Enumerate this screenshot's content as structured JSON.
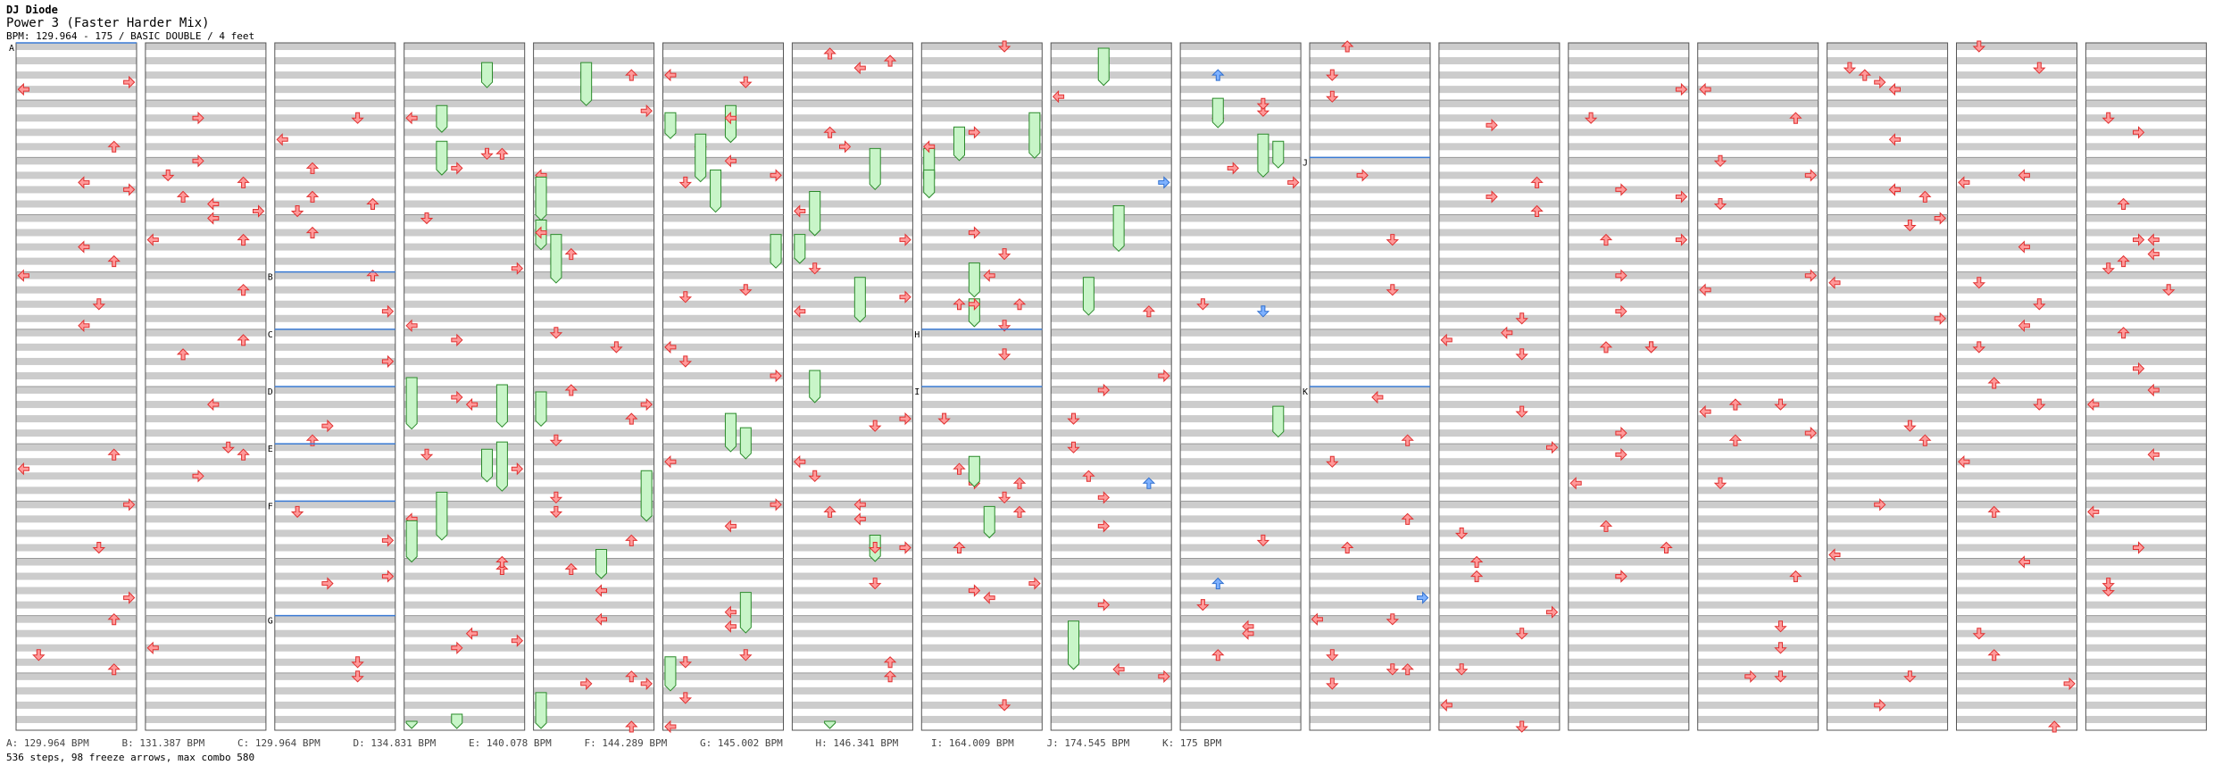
{
  "header": {
    "artist": "DJ Diode",
    "title": "Power 3 (Faster Harder Mix)",
    "bpm_line": "BPM: 129.964 - 175 / BASIC DOUBLE / 4 feet"
  },
  "columns": 17,
  "measures_per_column": 12,
  "section_markers": [
    {
      "label": "A",
      "column": 0,
      "measure": 0
    },
    {
      "label": "B",
      "column": 2,
      "measure": 4
    },
    {
      "label": "C",
      "column": 2,
      "measure": 5
    },
    {
      "label": "D",
      "column": 2,
      "measure": 6
    },
    {
      "label": "E",
      "column": 2,
      "measure": 7
    },
    {
      "label": "F",
      "column": 2,
      "measure": 8
    },
    {
      "label": "G",
      "column": 2,
      "measure": 10
    },
    {
      "label": "H",
      "column": 7,
      "measure": 5
    },
    {
      "label": "I",
      "column": 7,
      "measure": 6
    },
    {
      "label": "J",
      "column": 10,
      "measure": 2
    },
    {
      "label": "K",
      "column": 10,
      "measure": 6
    }
  ],
  "bpm_legend": [
    "A: 129.964 BPM",
    "B: 131.387 BPM",
    "C: 129.964 BPM",
    "D: 134.831 BPM",
    "E: 140.078 BPM",
    "F: 144.289 BPM",
    "G: 145.002 BPM",
    "H: 146.341 BPM",
    "I: 164.009 BPM",
    "J: 174.545 BPM",
    "K: 175 BPM"
  ],
  "stats": "536 steps, 98 freeze arrows, max combo 580",
  "colors": {
    "stripe": "#cccccc",
    "arrow_red": "#ff9a9a",
    "arrow_red_stroke": "#e03030",
    "arrow_blue": "#7fb2ff",
    "arrow_blue_stroke": "#2f6fd0",
    "freeze_fill": "#c8f5c8",
    "freeze_stroke": "#2a8a2a",
    "section_line": "#3a7bd5"
  }
}
